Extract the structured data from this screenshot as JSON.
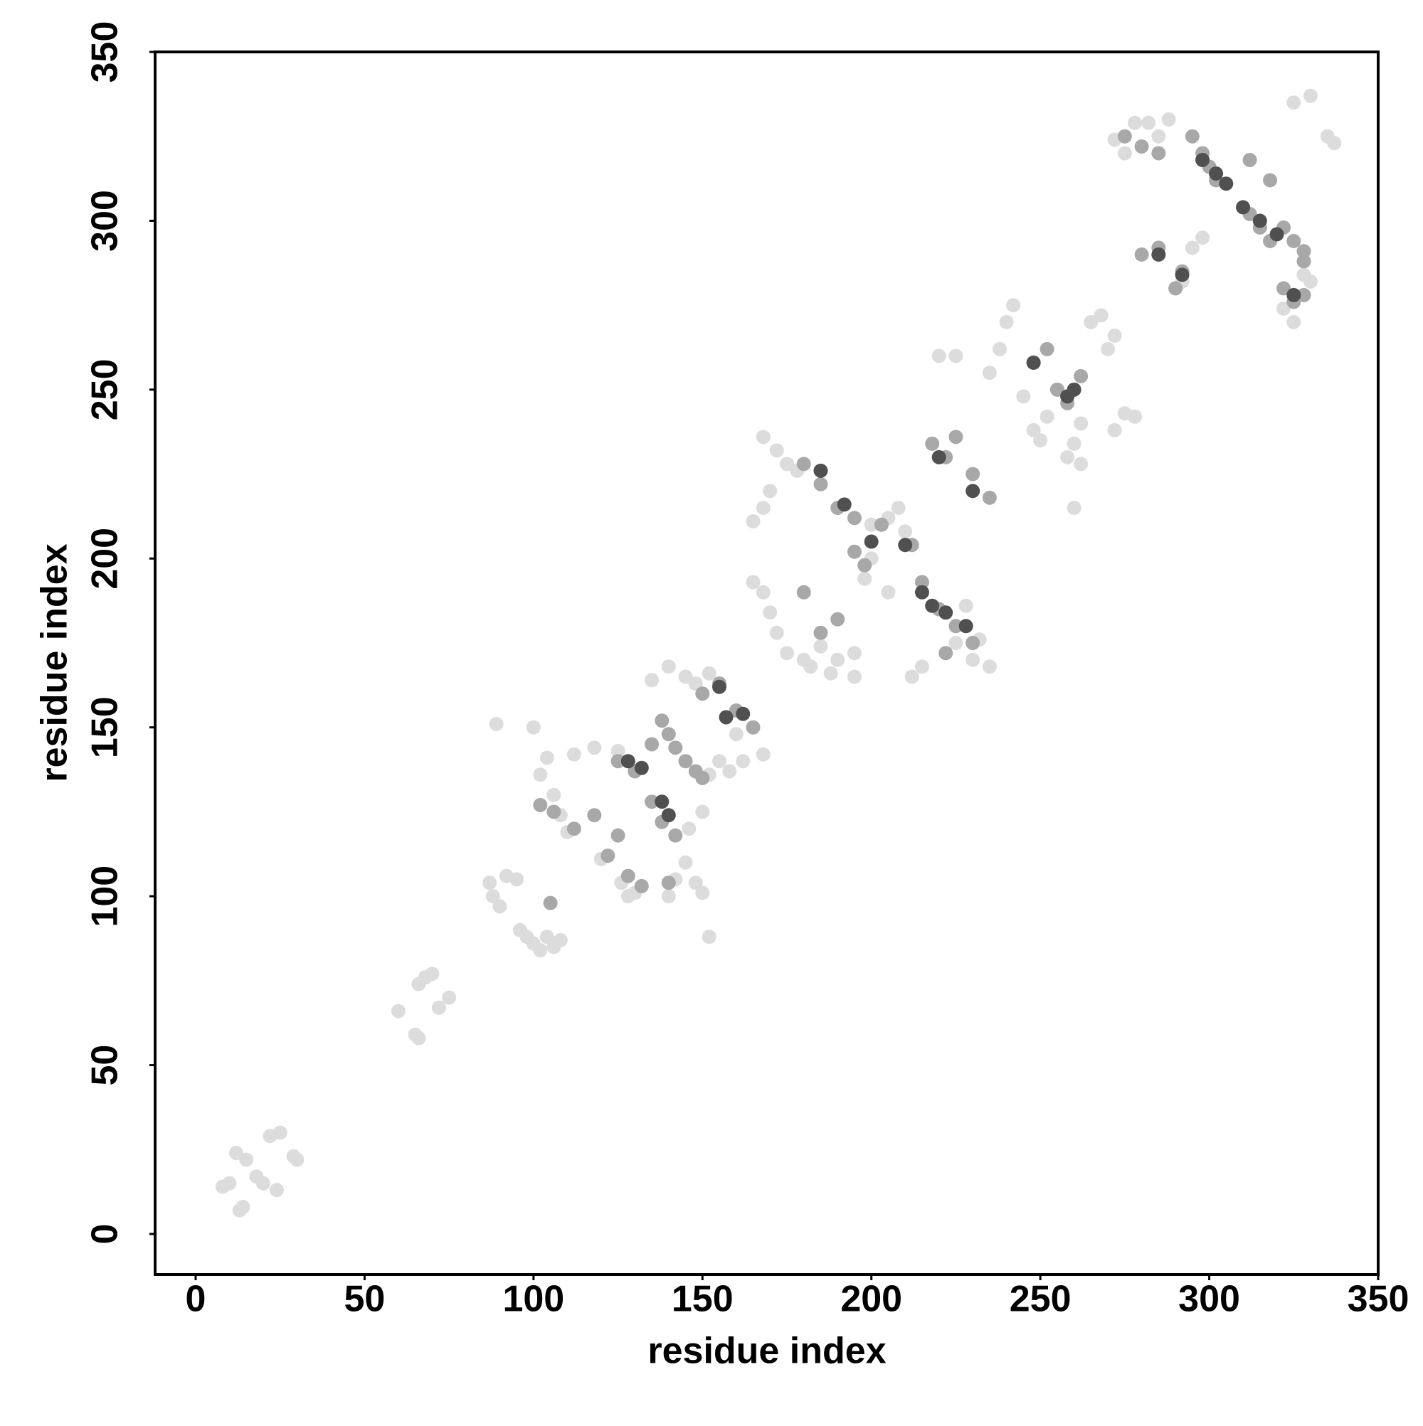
{
  "chart_data": {
    "type": "scatter",
    "xlabel": "residue index",
    "ylabel": "residue index",
    "xlim": [
      -12,
      350
    ],
    "ylim": [
      -12,
      350
    ],
    "xticks": [
      0,
      50,
      100,
      150,
      200,
      250,
      300,
      350
    ],
    "yticks": [
      0,
      50,
      100,
      150,
      200,
      250,
      300,
      350
    ],
    "series": [
      {
        "color": "#dcdcdc",
        "x": [
          10,
          8,
          12,
          14,
          15,
          20,
          22,
          25,
          24,
          29,
          30,
          13,
          18,
          60,
          65,
          66,
          68,
          72,
          75,
          70,
          66,
          87,
          88,
          90,
          92,
          95,
          96,
          98,
          100,
          102,
          104,
          106,
          108,
          89,
          100,
          102,
          104,
          106,
          108,
          110,
          112,
          118,
          120,
          125,
          126,
          128,
          130,
          140,
          142,
          145,
          148,
          150,
          152,
          146,
          150,
          152,
          155,
          158,
          160,
          165,
          168,
          162,
          145,
          148,
          152,
          140,
          135,
          165,
          168,
          170,
          168,
          172,
          175,
          178,
          165,
          168,
          170,
          172,
          175,
          180,
          182,
          185,
          188,
          190,
          195,
          195,
          200,
          205,
          208,
          210,
          200,
          198,
          205,
          212,
          215,
          225,
          230,
          235,
          228,
          232,
          220,
          225,
          235,
          238,
          240,
          242,
          245,
          248,
          250,
          252,
          255,
          258,
          260,
          260,
          262,
          265,
          268,
          272,
          275,
          278,
          270,
          272,
          262,
          272,
          275,
          278,
          282,
          285,
          288,
          292,
          295,
          298,
          325,
          330,
          335,
          337,
          325,
          328,
          330,
          322
        ],
        "y": [
          15,
          14,
          24,
          8,
          22,
          15,
          29,
          30,
          13,
          23,
          22,
          7,
          17,
          66,
          59,
          74,
          76,
          67,
          70,
          77,
          58,
          104,
          100,
          97,
          106,
          105,
          90,
          88,
          86,
          84,
          88,
          85,
          87,
          151,
          150,
          136,
          141,
          130,
          124,
          119,
          142,
          144,
          111,
          143,
          104,
          100,
          101,
          100,
          105,
          110,
          104,
          101,
          88,
          120,
          125,
          136,
          140,
          137,
          148,
          150,
          142,
          140,
          165,
          163,
          166,
          168,
          164,
          211,
          215,
          220,
          236,
          232,
          228,
          226,
          193,
          190,
          184,
          178,
          172,
          170,
          168,
          174,
          166,
          170,
          165,
          172,
          210,
          212,
          215,
          208,
          200,
          194,
          190,
          165,
          168,
          175,
          170,
          168,
          186,
          176,
          260,
          260,
          255,
          262,
          270,
          275,
          248,
          238,
          235,
          242,
          250,
          230,
          215,
          234,
          240,
          270,
          272,
          238,
          243,
          242,
          262,
          266,
          228,
          324,
          320,
          329,
          329,
          325,
          330,
          282,
          292,
          295,
          335,
          337,
          325,
          323,
          270,
          284,
          282,
          274
        ]
      },
      {
        "color": "#a8a8a8",
        "x": [
          105,
          102,
          106,
          112,
          118,
          122,
          125,
          128,
          132,
          140,
          135,
          138,
          140,
          142,
          145,
          148,
          150,
          135,
          138,
          142,
          130,
          125,
          160,
          165,
          155,
          150,
          180,
          185,
          190,
          195,
          180,
          190,
          185,
          195,
          198,
          203,
          212,
          215,
          220,
          225,
          230,
          222,
          218,
          222,
          225,
          230,
          235,
          248,
          252,
          255,
          258,
          262,
          280,
          285,
          292,
          290,
          295,
          298,
          300,
          302,
          312,
          315,
          318,
          322,
          325,
          328,
          322,
          325,
          328,
          275,
          280,
          285,
          312,
          318,
          328
        ],
        "y": [
          98,
          127,
          125,
          120,
          124,
          112,
          118,
          106,
          103,
          104,
          145,
          152,
          148,
          144,
          140,
          137,
          135,
          128,
          122,
          118,
          137,
          140,
          155,
          150,
          163,
          160,
          228,
          222,
          215,
          212,
          190,
          182,
          178,
          202,
          198,
          210,
          204,
          193,
          185,
          180,
          175,
          172,
          234,
          230,
          236,
          225,
          218,
          258,
          262,
          250,
          246,
          254,
          290,
          292,
          285,
          280,
          325,
          320,
          316,
          312,
          302,
          298,
          294,
          298,
          294,
          288,
          280,
          276,
          278,
          325,
          322,
          320,
          318,
          312,
          291
        ]
      },
      {
        "color": "#505050",
        "x": [
          128,
          132,
          138,
          140,
          155,
          157,
          162,
          185,
          192,
          200,
          210,
          215,
          218,
          222,
          228,
          220,
          230,
          248,
          258,
          285,
          292,
          298,
          302,
          305,
          310,
          315,
          320,
          325,
          260
        ],
        "y": [
          140,
          138,
          128,
          124,
          162,
          153,
          154,
          226,
          216,
          205,
          204,
          190,
          186,
          184,
          180,
          230,
          220,
          258,
          248,
          290,
          284,
          318,
          314,
          311,
          304,
          300,
          296,
          278,
          250
        ]
      }
    ]
  }
}
